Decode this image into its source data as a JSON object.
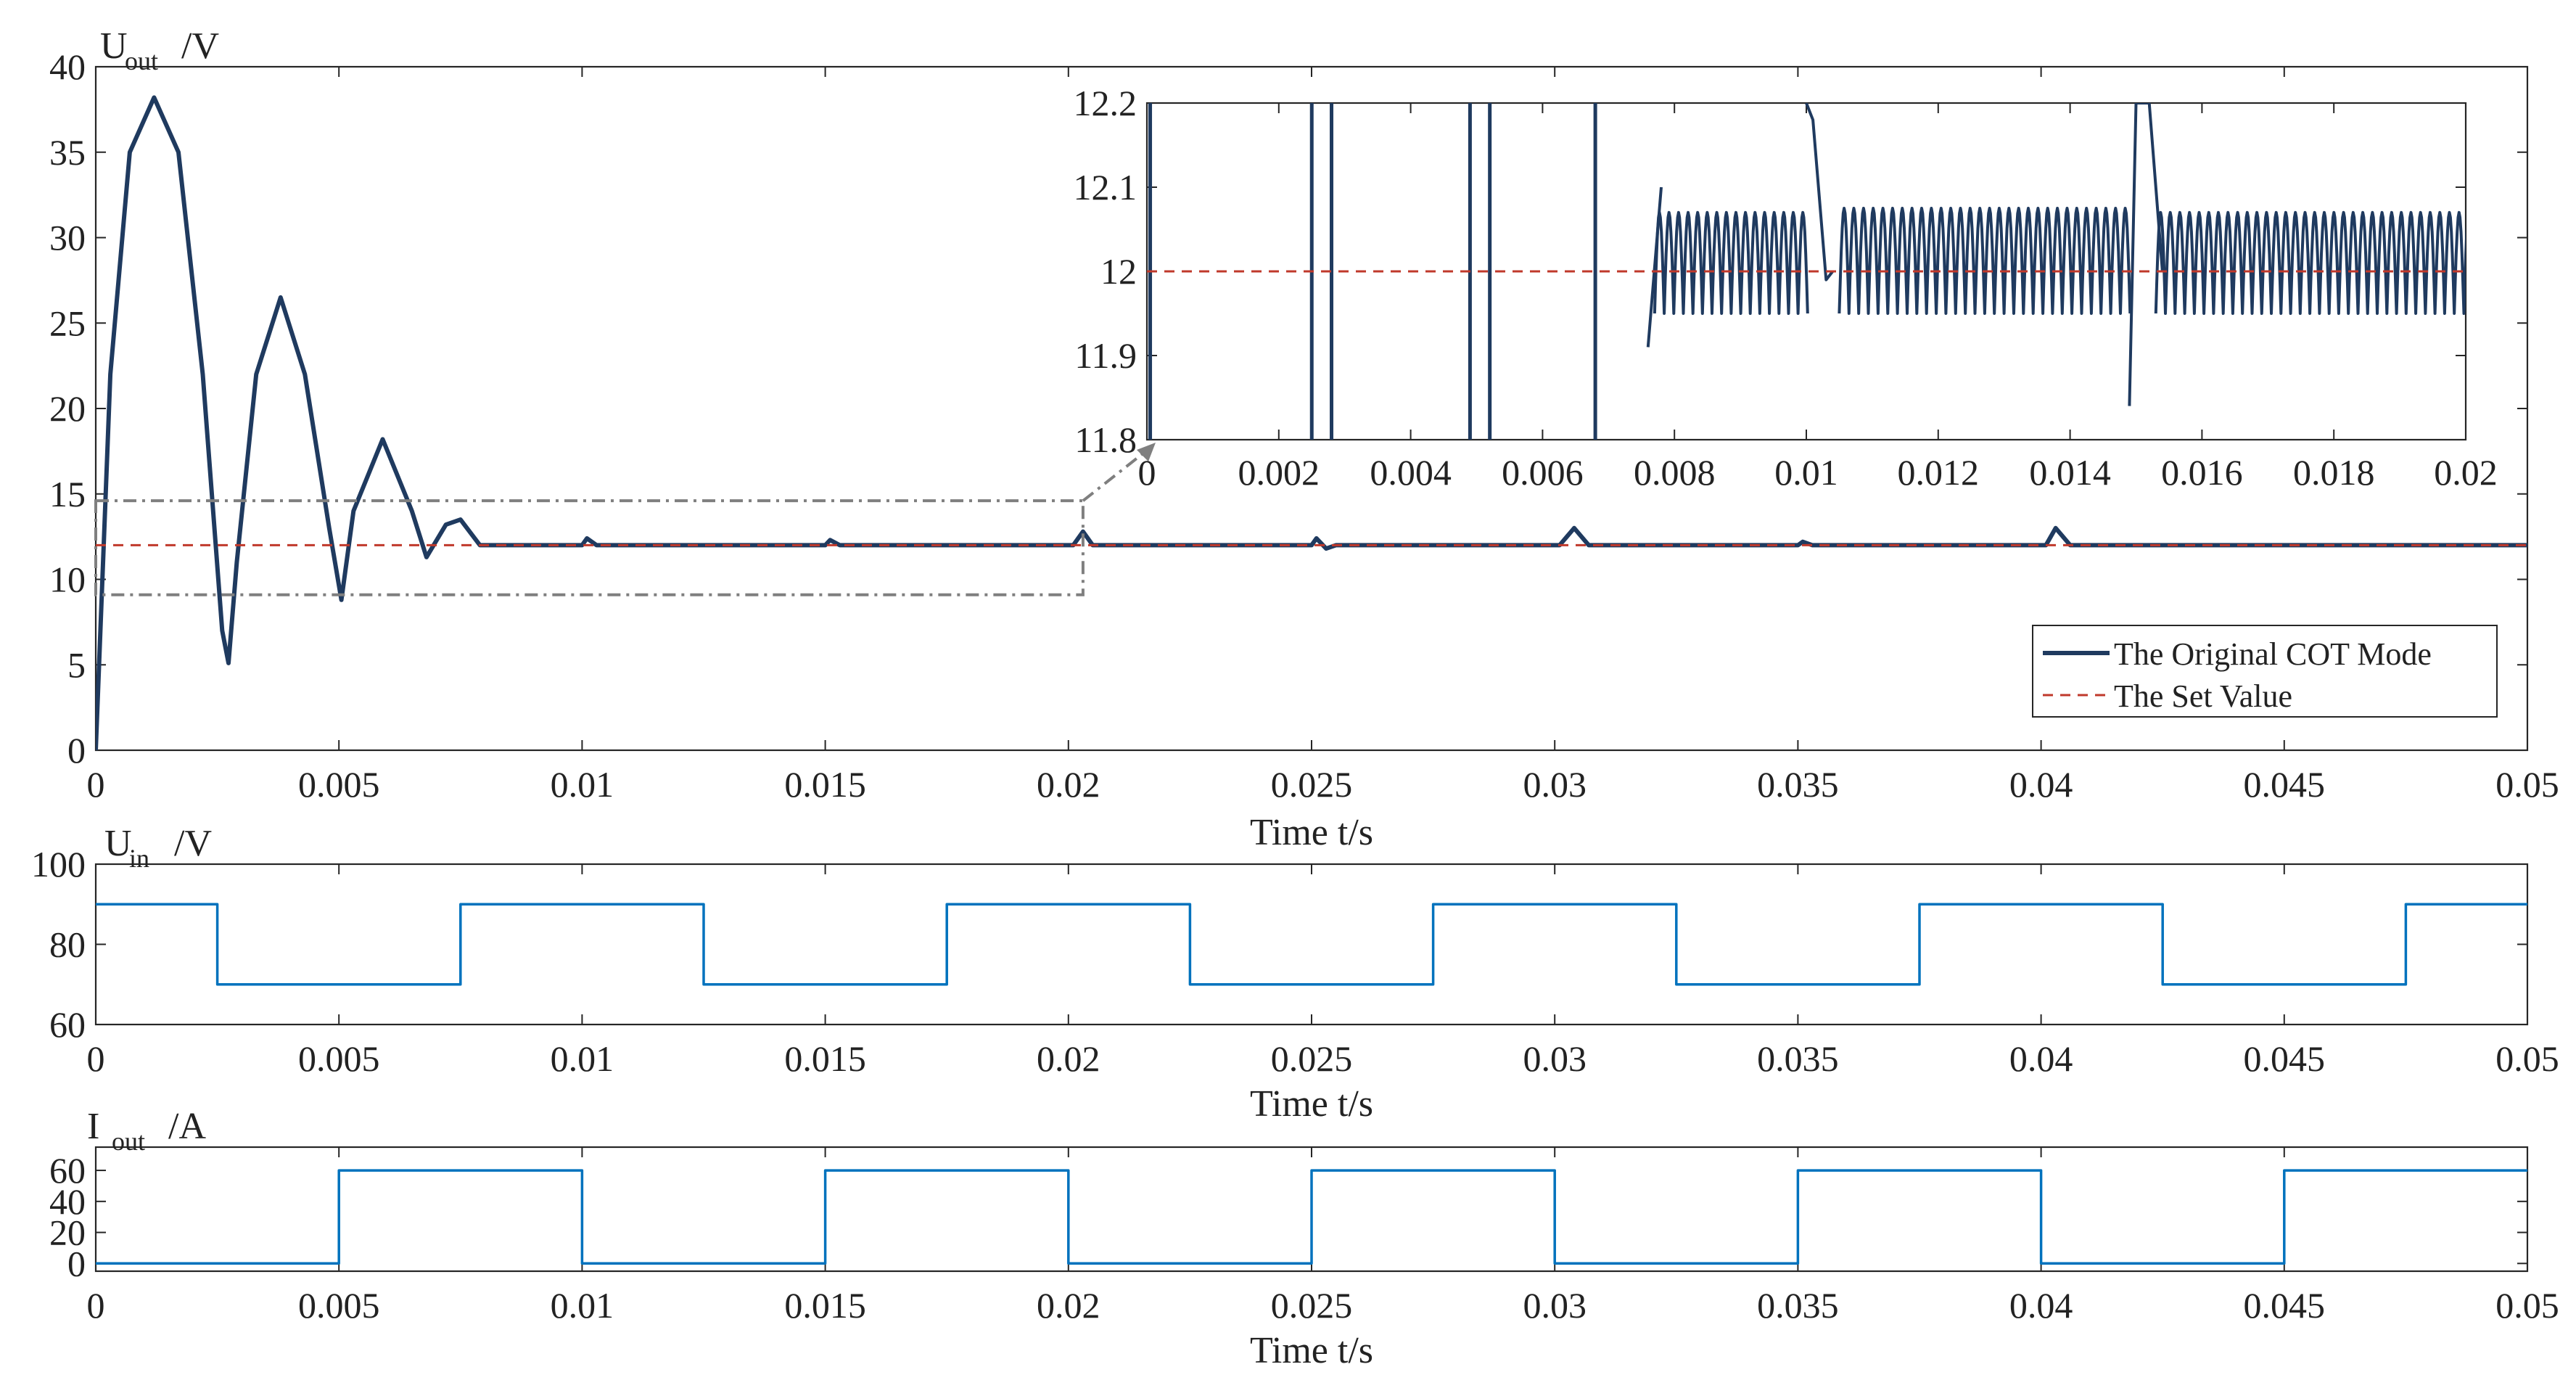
{
  "chart_data": [
    {
      "id": "uout",
      "type": "line",
      "ylabel_main": "U",
      "ylabel_sub": "out",
      "ylabel_unit": "/V",
      "xlabel": "Time t/s",
      "xlim": [
        0,
        0.05
      ],
      "ylim": [
        0,
        40
      ],
      "xticks": [
        0,
        0.005,
        0.01,
        0.015,
        0.02,
        0.025,
        0.03,
        0.035,
        0.04,
        0.045,
        0.05
      ],
      "xtick_labels": [
        "0",
        "0.005",
        "0.01",
        "0.015",
        "0.02",
        "0.025",
        "0.03",
        "0.035",
        "0.04",
        "0.045",
        "0.05"
      ],
      "yticks": [
        0,
        5,
        10,
        15,
        20,
        25,
        30,
        35,
        40
      ],
      "ytick_labels": [
        "0",
        "5",
        "10",
        "15",
        "20",
        "25",
        "30",
        "35",
        "40"
      ],
      "series": [
        {
          "name": "The Original COT Mode",
          "color": "#1f3a5f",
          "style": "solid",
          "points": [
            [
              0,
              0
            ],
            [
              0.0003,
              22
            ],
            [
              0.0007,
              35
            ],
            [
              0.0012,
              38.2
            ],
            [
              0.0017,
              35
            ],
            [
              0.0022,
              22
            ],
            [
              0.0026,
              7
            ],
            [
              0.00273,
              5.1
            ],
            [
              0.0029,
              11
            ],
            [
              0.0033,
              22
            ],
            [
              0.0038,
              26.5
            ],
            [
              0.0043,
              22
            ],
            [
              0.0048,
              13
            ],
            [
              0.00505,
              8.8
            ],
            [
              0.0053,
              14
            ],
            [
              0.0059,
              18.2
            ],
            [
              0.0065,
              14
            ],
            [
              0.0068,
              11.3
            ],
            [
              0.0072,
              13.2
            ],
            [
              0.0075,
              13.5
            ],
            [
              0.0079,
              12
            ],
            [
              0.01,
              12
            ],
            [
              0.0101,
              12.4
            ],
            [
              0.0103,
              12
            ],
            [
              0.015,
              12
            ],
            [
              0.0151,
              12.3
            ],
            [
              0.0153,
              12
            ],
            [
              0.0201,
              12
            ],
            [
              0.0203,
              12.8
            ],
            [
              0.0205,
              12
            ],
            [
              0.025,
              12
            ],
            [
              0.0251,
              12.4
            ],
            [
              0.0253,
              11.8
            ],
            [
              0.0255,
              12
            ],
            [
              0.0301,
              12
            ],
            [
              0.0304,
              13
            ],
            [
              0.0307,
              12
            ],
            [
              0.035,
              12
            ],
            [
              0.0351,
              12.2
            ],
            [
              0.0353,
              12
            ],
            [
              0.0401,
              12
            ],
            [
              0.0403,
              13
            ],
            [
              0.0406,
              12
            ],
            [
              0.05,
              12
            ]
          ]
        },
        {
          "name": "The Set Value",
          "color": "#c0392b",
          "style": "dashed",
          "points": [
            [
              0,
              12
            ],
            [
              0.05,
              12
            ]
          ]
        }
      ],
      "legend": {
        "position": "bottom-right",
        "entries": [
          "The Original COT Mode",
          "The Set Value"
        ]
      },
      "zoom_box": {
        "x": [
          0,
          0.0203
        ],
        "y": [
          9.1,
          14.6
        ]
      }
    },
    {
      "id": "inset",
      "type": "line",
      "xlim": [
        0,
        0.02
      ],
      "ylim": [
        11.8,
        12.2
      ],
      "xticks": [
        0,
        0.002,
        0.004,
        0.006,
        0.008,
        0.01,
        0.012,
        0.014,
        0.016,
        0.018,
        0.02
      ],
      "xtick_labels": [
        "0",
        "0.002",
        "0.004",
        "0.006",
        "0.008",
        "0.01",
        "0.012",
        "0.014",
        "0.016",
        "0.018",
        "0.02"
      ],
      "yticks": [
        11.8,
        11.9,
        12,
        12.1,
        12.2
      ],
      "ytick_labels": [
        "11.8",
        "11.9",
        "12",
        "12.1",
        "12.2"
      ],
      "spikes": [
        5e-05,
        0.0025,
        0.0028,
        0.0049,
        0.0052,
        0.0068
      ],
      "ripple": [
        {
          "start": 0.0077,
          "end": 0.0099,
          "high": 12.07,
          "low": 11.95,
          "period": 0.000145
        },
        {
          "start": 0.0105,
          "end": 0.0149,
          "high": 12.075,
          "low": 11.95,
          "period": 0.000147
        },
        {
          "start": 0.0153,
          "end": 0.02,
          "high": 12.07,
          "low": 11.95,
          "period": 0.000146
        }
      ],
      "settle_points": [
        [
          0.0076,
          11.91
        ],
        [
          0.0078,
          12.1
        ],
        [
          0.01,
          12.2
        ],
        [
          0.0101,
          12.18
        ],
        [
          0.0103,
          11.99
        ],
        [
          0.0104,
          12.0
        ],
        [
          0.0149,
          11.84
        ],
        [
          0.015,
          12.2
        ],
        [
          0.0152,
          12.2
        ],
        [
          0.0154,
          12.0
        ]
      ],
      "set_value": 12
    },
    {
      "id": "uin",
      "type": "line",
      "ylabel_main": "U",
      "ylabel_sub": "in",
      "ylabel_unit": "/V",
      "xlabel": "Time t/s",
      "xlim": [
        0,
        0.05
      ],
      "ylim": [
        60,
        100
      ],
      "xticks": [
        0,
        0.005,
        0.01,
        0.015,
        0.02,
        0.025,
        0.03,
        0.035,
        0.04,
        0.045,
        0.05
      ],
      "xtick_labels": [
        "0",
        "0.005",
        "0.01",
        "0.015",
        "0.02",
        "0.025",
        "0.03",
        "0.035",
        "0.04",
        "0.045",
        "0.05"
      ],
      "yticks": [
        60,
        80,
        100
      ],
      "ytick_labels": [
        "60",
        "80",
        "100"
      ],
      "series": [
        {
          "name": "Uin",
          "color": "#0072bd",
          "points": [
            [
              0,
              90
            ],
            [
              0.0025,
              90
            ],
            [
              0.0025,
              70
            ],
            [
              0.0075,
              70
            ],
            [
              0.0075,
              90
            ],
            [
              0.0125,
              90
            ],
            [
              0.0125,
              70
            ],
            [
              0.0175,
              70
            ],
            [
              0.0175,
              90
            ],
            [
              0.0225,
              90
            ],
            [
              0.0225,
              70
            ],
            [
              0.0275,
              70
            ],
            [
              0.0275,
              90
            ],
            [
              0.0325,
              90
            ],
            [
              0.0325,
              70
            ],
            [
              0.0375,
              70
            ],
            [
              0.0375,
              90
            ],
            [
              0.0425,
              90
            ],
            [
              0.0425,
              70
            ],
            [
              0.0475,
              70
            ],
            [
              0.0475,
              90
            ],
            [
              0.05,
              90
            ]
          ]
        }
      ]
    },
    {
      "id": "iout",
      "type": "line",
      "ylabel_main": "I",
      "ylabel_sub": "out",
      "ylabel_unit": "/A",
      "xlabel": "Time t/s",
      "xlim": [
        0,
        0.05
      ],
      "ylim": [
        -5,
        75
      ],
      "xticks": [
        0,
        0.005,
        0.01,
        0.015,
        0.02,
        0.025,
        0.03,
        0.035,
        0.04,
        0.045,
        0.05
      ],
      "xtick_labels": [
        "0",
        "0.005",
        "0.01",
        "0.015",
        "0.02",
        "0.025",
        "0.03",
        "0.035",
        "0.04",
        "0.045",
        "0.05"
      ],
      "yticks": [
        0,
        20,
        40,
        60
      ],
      "ytick_labels": [
        "0",
        "20",
        "40",
        "60"
      ],
      "series": [
        {
          "name": "Iout",
          "color": "#0072bd",
          "points": [
            [
              0,
              0
            ],
            [
              0.005,
              0
            ],
            [
              0.005,
              60
            ],
            [
              0.01,
              60
            ],
            [
              0.01,
              0
            ],
            [
              0.015,
              0
            ],
            [
              0.015,
              60
            ],
            [
              0.02,
              60
            ],
            [
              0.02,
              0
            ],
            [
              0.025,
              0
            ],
            [
              0.025,
              60
            ],
            [
              0.03,
              60
            ],
            [
              0.03,
              0
            ],
            [
              0.035,
              0
            ],
            [
              0.035,
              60
            ],
            [
              0.04,
              60
            ],
            [
              0.04,
              0
            ],
            [
              0.045,
              0
            ],
            [
              0.045,
              60
            ],
            [
              0.05,
              60
            ]
          ]
        }
      ]
    }
  ]
}
